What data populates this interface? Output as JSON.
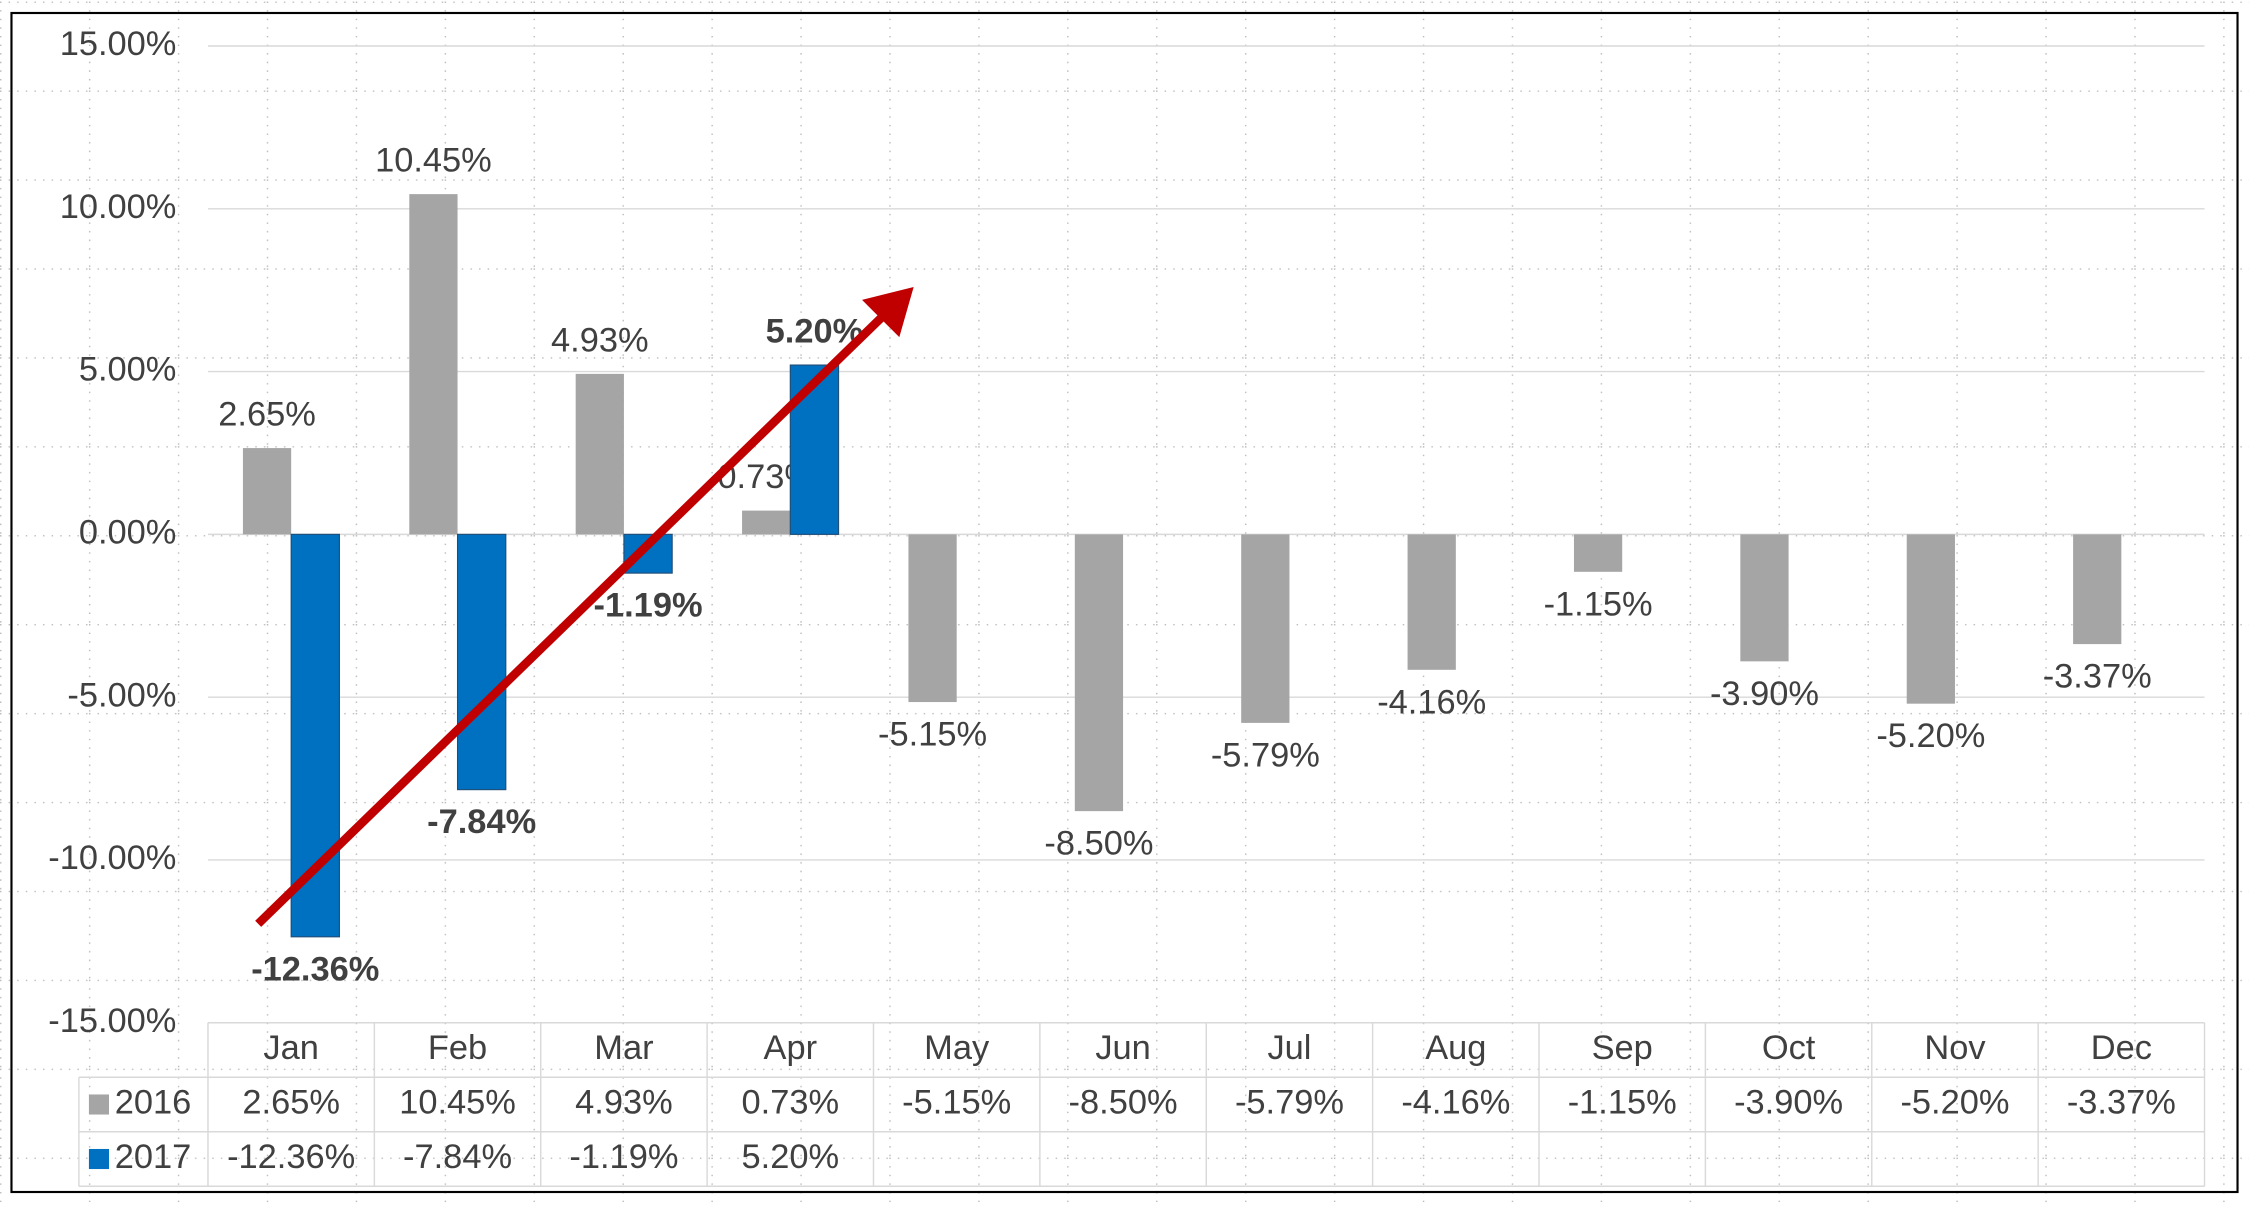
{
  "chart_data": {
    "type": "bar",
    "categories": [
      "Jan",
      "Feb",
      "Mar",
      "Apr",
      "May",
      "Jun",
      "Jul",
      "Aug",
      "Sep",
      "Oct",
      "Nov",
      "Dec"
    ],
    "series": [
      {
        "name": "2016",
        "color": "#a5a5a5",
        "values": [
          2.65,
          10.45,
          4.93,
          0.73,
          -5.15,
          -8.5,
          -5.79,
          -4.16,
          -1.15,
          -3.9,
          -5.2,
          -3.37
        ],
        "value_labels": [
          "2.65%",
          "10.45%",
          "4.93%",
          "0.73%",
          "-5.15%",
          "-8.50%",
          "-5.79%",
          "-4.16%",
          "-1.15%",
          "-3.90%",
          "-5.20%",
          "-3.37%"
        ]
      },
      {
        "name": "2017",
        "color": "#0070c0",
        "values": [
          -12.36,
          -7.84,
          -1.19,
          5.2,
          null,
          null,
          null,
          null,
          null,
          null,
          null,
          null
        ],
        "value_labels": [
          "-12.36%",
          "-7.84%",
          "-1.19%",
          "5.20%",
          null,
          null,
          null,
          null,
          null,
          null,
          null,
          null
        ]
      }
    ],
    "ylim": [
      -15,
      15
    ],
    "yticks": [
      {
        "value": -15,
        "label": "-15.00%"
      },
      {
        "value": -10,
        "label": "-10.00%"
      },
      {
        "value": -5,
        "label": "-5.00%"
      },
      {
        "value": 0,
        "label": "0.00%"
      },
      {
        "value": 5,
        "label": "5.00%"
      },
      {
        "value": 10,
        "label": "10.00%"
      },
      {
        "value": 15,
        "label": "15.00%"
      }
    ],
    "grid": true,
    "data_table": true
  }
}
